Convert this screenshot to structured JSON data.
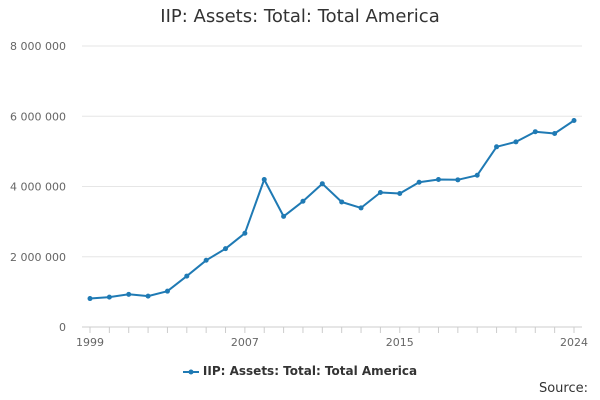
{
  "chart_data": {
    "type": "line",
    "title": "IIP: Assets: Total: Total America",
    "xlabel": "",
    "ylabel": "",
    "x": [
      1999,
      2000,
      2001,
      2002,
      2003,
      2004,
      2005,
      2006,
      2007,
      2008,
      2009,
      2010,
      2011,
      2012,
      2013,
      2014,
      2015,
      2016,
      2017,
      2018,
      2019,
      2020,
      2021,
      2022,
      2023,
      2024
    ],
    "series": [
      {
        "name": "IIP: Assets: Total: Total America",
        "color": "#1f7ab4",
        "values": [
          810000,
          850000,
          930000,
          880000,
          1020000,
          1450000,
          1900000,
          2230000,
          2670000,
          4200000,
          3150000,
          3580000,
          4080000,
          3560000,
          3390000,
          3830000,
          3800000,
          4120000,
          4200000,
          4190000,
          4320000,
          5130000,
          5270000,
          5560000,
          5510000,
          5880000
        ]
      }
    ],
    "xlim": [
      1999,
      2024
    ],
    "ylim": [
      0,
      8000000
    ],
    "x_tick_labels": [
      "1999",
      "2007",
      "2015",
      "2024"
    ],
    "x_tick_values": [
      1999,
      2007,
      2015,
      2024
    ],
    "y_tick_labels": [
      "0",
      "2 000 000",
      "4 000 000",
      "6 000 000",
      "8 000 000"
    ],
    "y_tick_values": [
      0,
      2000000,
      4000000,
      6000000,
      8000000
    ],
    "grid": true,
    "legend_position": "bottom-center",
    "source_label": "Source:"
  }
}
